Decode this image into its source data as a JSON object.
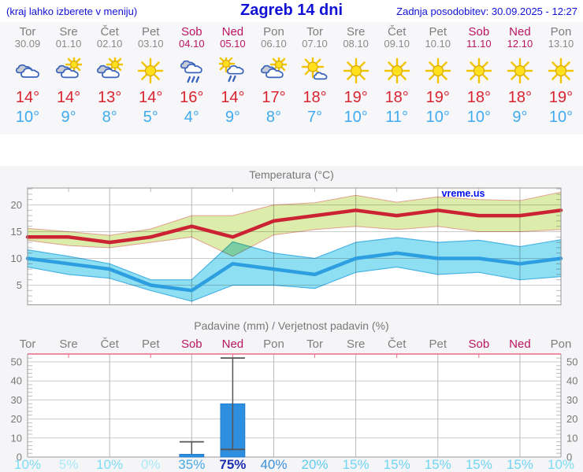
{
  "header": {
    "hint": "(kraj lahko izberete v meniju)",
    "title": "Zagreb 14 dni",
    "updated": "Zadnja posodobitev: 30.09.2025 - 12:27"
  },
  "watermark": "vreme.us",
  "colors": {
    "header_blue": "#1111d6",
    "weekday_gray": "#7e7e7e",
    "weekend_crimson": "#bb1462",
    "tmax_red": "#d8242f",
    "tmin_blue": "#3fabee",
    "line_max": "#cb2333",
    "band_max": "#dcecaa",
    "band_max_edge": "#e2a08e",
    "line_min": "#2d9fe0",
    "band_min": "#8fdff2",
    "band_min_edge": "#4ab3e6",
    "bar_blue": "#2e8fe0",
    "bar_edge": "#1d76c9",
    "whisker": "#555555",
    "pink_axis": "#ec6a8a",
    "grid": "#cccccc",
    "vgrid": "#b8b8b8",
    "frame": "#999999",
    "tick_text": "#777777",
    "title_text": "#777777",
    "watermark_blue": "#0011ee",
    "prob_palette": {
      "p0": "#a9ebf8",
      "p10": "#7edcf4",
      "p15": "#70d5f2",
      "p20": "#5ecdee",
      "p35": "#46a9e4",
      "p40": "#3a8fd6",
      "p75": "#1c2fae"
    }
  },
  "days": [
    {
      "name": "Tor",
      "date": "30.09",
      "weekend": false,
      "icon": "cloudy",
      "tmax": 14,
      "tmin": 10,
      "precip_prob": 10
    },
    {
      "name": "Sre",
      "date": "01.10",
      "weekend": false,
      "icon": "sun-clouds",
      "tmax": 14,
      "tmin": 9,
      "precip_prob": 5
    },
    {
      "name": "Čet",
      "date": "02.10",
      "weekend": false,
      "icon": "sun-clouds",
      "tmax": 13,
      "tmin": 8,
      "precip_prob": 10
    },
    {
      "name": "Pet",
      "date": "03.10",
      "weekend": false,
      "icon": "sunny",
      "tmax": 14,
      "tmin": 5,
      "precip_prob": 0
    },
    {
      "name": "Sob",
      "date": "04.10",
      "weekend": true,
      "icon": "rain",
      "tmax": 16,
      "tmin": 4,
      "precip_prob": 35
    },
    {
      "name": "Ned",
      "date": "05.10",
      "weekend": true,
      "icon": "sun-rain",
      "tmax": 14,
      "tmin": 9,
      "precip_prob": 75
    },
    {
      "name": "Pon",
      "date": "06.10",
      "weekend": false,
      "icon": "sun-clouds",
      "tmax": 17,
      "tmin": 8,
      "precip_prob": 40
    },
    {
      "name": "Tor",
      "date": "07.10",
      "weekend": false,
      "icon": "sun-cloud",
      "tmax": 18,
      "tmin": 7,
      "precip_prob": 20
    },
    {
      "name": "Sre",
      "date": "08.10",
      "weekend": false,
      "icon": "sunny",
      "tmax": 19,
      "tmin": 10,
      "precip_prob": 15
    },
    {
      "name": "Čet",
      "date": "09.10",
      "weekend": false,
      "icon": "sunny",
      "tmax": 18,
      "tmin": 11,
      "precip_prob": 15
    },
    {
      "name": "Pet",
      "date": "10.10",
      "weekend": false,
      "icon": "sunny",
      "tmax": 19,
      "tmin": 10,
      "precip_prob": 15
    },
    {
      "name": "Sob",
      "date": "11.10",
      "weekend": true,
      "icon": "sunny",
      "tmax": 18,
      "tmin": 10,
      "precip_prob": 15
    },
    {
      "name": "Ned",
      "date": "12.10",
      "weekend": true,
      "icon": "sunny",
      "tmax": 18,
      "tmin": 9,
      "precip_prob": 15
    },
    {
      "name": "Pon",
      "date": "13.10",
      "weekend": false,
      "icon": "sunny",
      "tmax": 19,
      "tmin": 10,
      "precip_prob": 10
    }
  ],
  "chart_data": [
    {
      "type": "line",
      "title": "Temperatura (°C)",
      "watermark": "vreme.us",
      "x_categories": [
        "Tor",
        "Sre",
        "Čet",
        "Pet",
        "Sob",
        "Ned",
        "Pon",
        "Tor",
        "Sre",
        "Čet",
        "Pet",
        "Sob",
        "Ned",
        "Pon"
      ],
      "ylabel": "°C",
      "ylim": [
        1.3,
        23.2
      ],
      "yticks": [
        5,
        10,
        15,
        20
      ],
      "grid_day_indices": [
        2,
        4,
        6,
        8,
        10,
        12
      ],
      "legend": "none",
      "series": [
        {
          "name": "max temperature",
          "values": [
            14,
            14,
            13,
            14,
            16,
            14,
            17,
            18,
            19,
            18,
            19,
            18,
            18,
            19
          ],
          "band_hi": [
            15.6,
            15,
            14.3,
            15.5,
            18,
            18,
            20,
            20.4,
            21.8,
            20.5,
            21.5,
            21,
            20.8,
            22.4
          ],
          "band_lo": [
            13.4,
            12.4,
            12,
            13,
            14,
            10.4,
            14.4,
            15.4,
            16,
            15.4,
            16,
            15,
            15,
            15.4
          ]
        },
        {
          "name": "min temperature",
          "values": [
            10,
            9,
            8,
            5,
            4,
            9,
            8,
            7,
            10,
            11,
            10,
            10,
            9,
            10
          ],
          "band_hi": [
            11.6,
            10.4,
            9,
            6,
            6,
            13.1,
            11,
            10,
            13,
            13.9,
            13,
            13.4,
            12.2,
            13.5
          ],
          "band_lo": [
            8.4,
            7,
            6.3,
            4,
            2,
            5,
            5,
            4.4,
            7.4,
            8.4,
            7,
            7.4,
            6,
            6.6
          ]
        }
      ]
    },
    {
      "type": "bar",
      "title": "Padavine (mm) / Verjetnost padavin (%)",
      "categories": [
        "Tor",
        "Sre",
        "Čet",
        "Pet",
        "Sob",
        "Ned",
        "Pon",
        "Tor",
        "Sre",
        "Čet",
        "Pet",
        "Sob",
        "Ned",
        "Pon"
      ],
      "values_mm": [
        0,
        0,
        0,
        0,
        1.5,
        28,
        0,
        0,
        0,
        0,
        0,
        0,
        0,
        0
      ],
      "whiskers": [
        {
          "day_index": 4,
          "lo": 1.5,
          "hi": 8,
          "caps": [
            "hi"
          ]
        },
        {
          "day_index": 5,
          "lo": 4,
          "hi": 52,
          "caps": [
            "lo",
            "hi"
          ]
        }
      ],
      "probabilities_pct": [
        10,
        5,
        10,
        0,
        35,
        75,
        40,
        20,
        15,
        15,
        15,
        15,
        15,
        10
      ],
      "ylim": [
        0,
        54
      ],
      "yticks": [
        0,
        10,
        20,
        30,
        40,
        50
      ],
      "grid_day_indices": [
        2,
        4,
        6,
        8,
        10,
        12
      ]
    }
  ]
}
